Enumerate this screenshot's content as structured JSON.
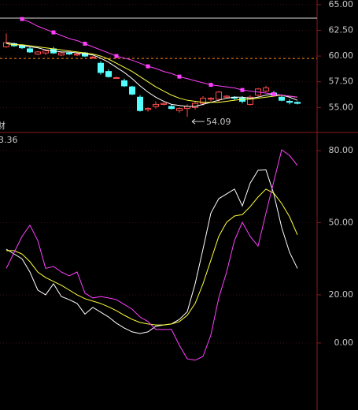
{
  "chart_data": [
    {
      "type": "candlestick",
      "up_color": "#ff4b4b",
      "down_color": "#54ffff",
      "open": [
        60.9,
        61.2,
        61.0,
        60.7,
        60.2,
        60.3,
        60.7,
        60.1,
        60.3,
        60.1,
        60.3,
        59.9,
        59.3,
        58.5,
        57.9,
        57.6,
        57.0,
        56.0,
        54.8,
        55.1,
        55.3,
        55.1,
        54.7,
        54.9,
        55.0,
        55.4,
        55.8,
        55.8,
        56.0,
        56.0,
        55.9,
        55.3,
        56.2,
        56.6,
        56.4,
        56.0,
        55.6,
        55.5
      ],
      "high": [
        62.2,
        61.3,
        61.1,
        60.9,
        60.5,
        60.6,
        60.9,
        60.4,
        60.4,
        60.3,
        60.4,
        60.0,
        59.5,
        58.7,
        58.0,
        57.8,
        57.1,
        56.2,
        55.0,
        55.6,
        55.5,
        55.3,
        55.0,
        55.3,
        55.6,
        56.1,
        56.0,
        56.6,
        56.2,
        56.1,
        56.1,
        56.2,
        56.9,
        57.1,
        56.6,
        56.2,
        55.8,
        55.6
      ],
      "low": [
        60.8,
        60.9,
        60.7,
        60.3,
        60.1,
        60.1,
        60.2,
        60.0,
        60.1,
        60.0,
        59.9,
        59.7,
        58.2,
        57.9,
        57.8,
        57.0,
        56.2,
        54.6,
        54.6,
        54.9,
        55.2,
        54.8,
        54.5,
        54.09,
        54.8,
        55.2,
        55.6,
        55.6,
        55.9,
        55.7,
        55.4,
        55.2,
        56.0,
        56.5,
        56.1,
        55.6,
        55.3,
        55.3
      ],
      "close": [
        61.3,
        61.0,
        60.8,
        60.4,
        60.4,
        60.5,
        60.3,
        60.3,
        60.2,
        60.2,
        60.0,
        59.9,
        58.4,
        58.0,
        57.9,
        57.1,
        56.3,
        54.7,
        54.9,
        55.3,
        55.4,
        54.9,
        54.9,
        55.1,
        55.4,
        55.9,
        55.9,
        56.5,
        56.1,
        55.9,
        55.6,
        56.0,
        56.8,
        56.9,
        56.2,
        55.7,
        55.5,
        55.4
      ],
      "series": [
        {
          "color": "#ffffff",
          "values": [
            61.3,
            61.2,
            61.0,
            60.9,
            60.8,
            60.6,
            60.5,
            60.4,
            60.4,
            60.3,
            60.2,
            60.1,
            59.8,
            59.4,
            58.9,
            58.4,
            57.8,
            57.1,
            56.5,
            56.0,
            55.6,
            55.3,
            55.2,
            55.1,
            55.1,
            55.3,
            55.5,
            55.7,
            55.9,
            56.0,
            56.0,
            55.9,
            56.0,
            56.2,
            56.3,
            56.2,
            56.0,
            55.7
          ]
        },
        {
          "color": "#ffff3c",
          "values": [
            61.2,
            61.1,
            61.1,
            61.0,
            60.9,
            60.8,
            60.7,
            60.6,
            60.5,
            60.4,
            60.3,
            60.2,
            60.0,
            59.7,
            59.3,
            58.9,
            58.5,
            58.0,
            57.5,
            57.0,
            56.6,
            56.2,
            55.9,
            55.7,
            55.6,
            55.5,
            55.5,
            55.5,
            55.6,
            55.7,
            55.8,
            55.8,
            55.9,
            56.0,
            56.1,
            56.2,
            56.1,
            56.0
          ]
        },
        {
          "color": "#ff40ff",
          "markers": true,
          "values": [
            null,
            null,
            63.6,
            63.3,
            62.9,
            62.6,
            62.3,
            62.0,
            61.7,
            61.5,
            61.2,
            60.9,
            60.6,
            60.3,
            60.0,
            59.8,
            59.6,
            59.3,
            59.0,
            58.8,
            58.5,
            58.3,
            58.0,
            57.8,
            57.6,
            57.4,
            57.2,
            57.1,
            57.0,
            56.9,
            56.7,
            56.6,
            56.5,
            56.4,
            56.3,
            56.2,
            56.1,
            56.0
          ]
        }
      ],
      "ylim": [
        52.8,
        65.45
      ],
      "yticks": [
        {
          "value": 65,
          "label": "65.00"
        },
        {
          "value": 62.5,
          "label": "62.50"
        },
        {
          "value": 60,
          "label": "60.00"
        },
        {
          "value": 57.5,
          "label": "57.50"
        },
        {
          "value": 55,
          "label": "55.00"
        }
      ],
      "reference_line": {
        "value": 59.77,
        "color": "#ff8c1a"
      },
      "upper_line": {
        "value": 63.69,
        "color": "#dddddd"
      },
      "low_annotation": {
        "text": "54.09",
        "value": 54.09,
        "index": 23
      },
      "side_label": "财"
    },
    {
      "type": "line",
      "header_value": "3.36",
      "header_color": "#ff40ff",
      "series": [
        {
          "color": "#ffffff",
          "values": [
            39,
            37,
            35,
            29.5,
            22,
            20,
            24.6,
            19.3,
            18,
            16.4,
            12,
            14.8,
            12.8,
            10.8,
            8.2,
            6.2,
            4.6,
            3.9,
            4.6,
            6.9,
            7.5,
            7.9,
            9.8,
            13,
            24.6,
            39,
            54,
            60,
            62,
            64,
            57,
            66.5,
            71.8,
            72,
            62,
            48,
            37.7,
            31
          ]
        },
        {
          "color": "#ffff3c",
          "values": [
            38.4,
            38.4,
            37,
            33.8,
            29.5,
            27.2,
            25.6,
            24,
            22,
            20,
            18.4,
            17.4,
            16.4,
            15,
            13.4,
            11.5,
            9.8,
            8.5,
            7.9,
            7.5,
            7.5,
            7.9,
            8.9,
            11.5,
            16.4,
            24.6,
            34.4,
            44.3,
            50.2,
            52.8,
            53.4,
            56.7,
            60.7,
            64,
            62.3,
            58,
            52.5,
            45
          ]
        },
        {
          "color": "#ff40ff",
          "values": [
            31,
            37.7,
            44.3,
            49,
            42.6,
            31,
            31.8,
            29.5,
            27.9,
            29.5,
            20.7,
            18.7,
            19.3,
            18.7,
            18,
            16,
            14,
            10.8,
            8.9,
            5.6,
            5.6,
            5.6,
            -1,
            -6.6,
            -7.2,
            -5.6,
            3.3,
            18.7,
            29.5,
            42.6,
            50.2,
            44.3,
            40.3,
            54,
            67.2,
            80.3,
            78,
            73.8
          ]
        }
      ],
      "ylim": [
        -27.9,
        86.9
      ],
      "yticks": [
        {
          "value": 80,
          "label": "80.00"
        },
        {
          "value": 50,
          "label": "50.00"
        },
        {
          "value": 20,
          "label": "20.00"
        },
        {
          "value": 0,
          "label": "0.00"
        }
      ]
    }
  ]
}
